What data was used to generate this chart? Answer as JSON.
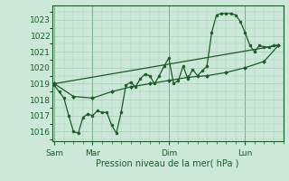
{
  "bg_color": "#cce8d8",
  "grid_color": "#aaccb8",
  "line_color": "#1a5c28",
  "marker_color": "#1a5c28",
  "xlabel": "Pression niveau de la mer( hPa )",
  "xlabel_color": "#1a5c28",
  "tick_color": "#1a5c28",
  "ylim": [
    1015.4,
    1023.9
  ],
  "yticks": [
    1016,
    1017,
    1018,
    1019,
    1020,
    1021,
    1022,
    1023
  ],
  "day_positions": [
    0,
    8,
    24,
    40
  ],
  "day_labels": [
    "Sam",
    "Mar",
    "Dim",
    "Lun"
  ],
  "xlim": [
    -0.5,
    48
  ],
  "series1_x": [
    0,
    1,
    2,
    3,
    4,
    5,
    6,
    7,
    8,
    9,
    10,
    11,
    12,
    13,
    14,
    15,
    16,
    17,
    18,
    19,
    20,
    21,
    22,
    23,
    24,
    25,
    26,
    27,
    28,
    29,
    30,
    31,
    32,
    33,
    34,
    35,
    36,
    37,
    38,
    39,
    40,
    41,
    42,
    43,
    44,
    45,
    46,
    47
  ],
  "series1_y": [
    1018.9,
    1018.5,
    1018.1,
    1017.0,
    1016.0,
    1015.9,
    1016.9,
    1017.1,
    1017.0,
    1017.3,
    1017.2,
    1017.2,
    1016.4,
    1015.9,
    1017.2,
    1018.9,
    1019.1,
    1018.8,
    1019.3,
    1019.6,
    1019.5,
    1019.0,
    1019.5,
    1020.1,
    1020.6,
    1019.0,
    1019.2,
    1020.1,
    1019.3,
    1019.9,
    1019.5,
    1019.8,
    1020.1,
    1022.2,
    1023.3,
    1023.4,
    1023.4,
    1023.4,
    1023.3,
    1022.9,
    1022.2,
    1021.4,
    1021.0,
    1021.4,
    1021.3,
    1021.3,
    1021.4,
    1021.4
  ],
  "series2_x": [
    0,
    4,
    8,
    12,
    16,
    20,
    24,
    28,
    32,
    36,
    40,
    44,
    47
  ],
  "series2_y": [
    1019.0,
    1018.2,
    1018.1,
    1018.5,
    1018.8,
    1019.0,
    1019.2,
    1019.4,
    1019.5,
    1019.7,
    1020.0,
    1020.4,
    1021.4
  ],
  "series3_x": [
    0,
    47
  ],
  "series3_y": [
    1019.0,
    1021.4
  ]
}
